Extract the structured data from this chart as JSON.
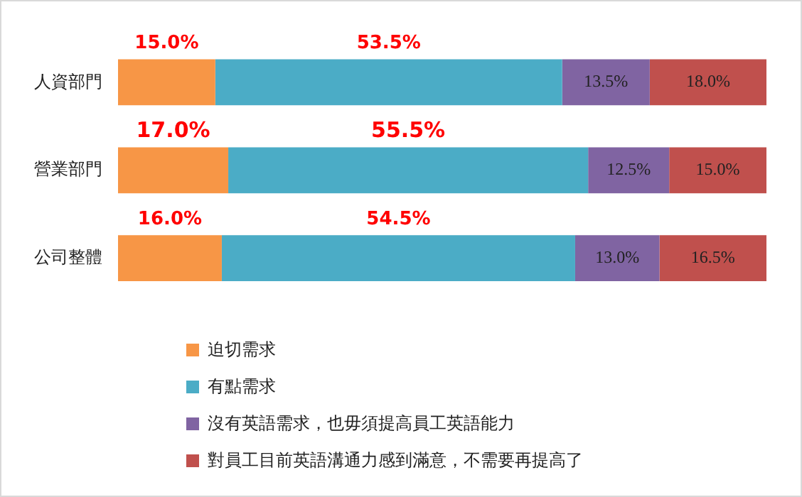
{
  "chart_data": {
    "type": "bar",
    "orientation": "horizontal",
    "stacked": true,
    "categories": [
      "人資部門",
      "營業部門",
      "公司整體"
    ],
    "series": [
      {
        "name": "迫切需求",
        "color": "#f79646",
        "values": [
          15.0,
          17.0,
          16.0
        ],
        "value_labels": [
          "15.0%",
          "17.0%",
          "16.0%"
        ]
      },
      {
        "name": "有點需求",
        "color": "#4bacc6",
        "values": [
          53.5,
          55.5,
          54.5
        ],
        "value_labels": [
          "53.5%",
          "55.5%",
          "54.5%"
        ]
      },
      {
        "name": "沒有英語需求，也毋須提高員工英語能力",
        "color": "#8064a2",
        "values": [
          13.5,
          12.5,
          13.0
        ],
        "value_labels": [
          "13.5%",
          "12.5%",
          "13.0%"
        ]
      },
      {
        "name": "對員工目前英語溝通力感到滿意，不需要再提高了",
        "color": "#c0504d",
        "values": [
          18.0,
          15.0,
          16.5
        ],
        "value_labels": [
          "18.0%",
          "15.0%",
          "16.5%"
        ]
      }
    ],
    "legend": "bottom left"
  }
}
